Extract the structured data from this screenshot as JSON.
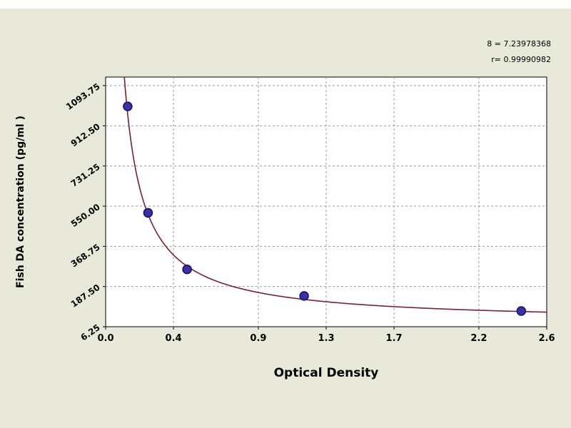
{
  "page": {
    "background_color": "#e9e9da"
  },
  "chart_data": {
    "type": "line",
    "title": "",
    "xlabel": "Optical Density",
    "ylabel": "Fish DA concentration (pg/ml )",
    "xlim": [
      0.0,
      2.6
    ],
    "ylim": [
      6.25,
      1093.75
    ],
    "x_ticks": [
      0.0,
      0.4,
      0.9,
      1.3,
      1.7,
      2.2,
      2.6
    ],
    "x_tick_labels": [
      "0.0",
      "0.4",
      "0.9",
      "1.3",
      "1.7",
      "2.2",
      "2.6"
    ],
    "y_ticks": [
      6.25,
      187.5,
      368.75,
      550.0,
      731.25,
      912.5,
      1093.75
    ],
    "y_tick_labels": [
      "6.25",
      "187.50",
      "368.75",
      "550.00",
      "731.25",
      "912.50",
      "1093.75"
    ],
    "grid": "dashed",
    "points": [
      {
        "x": 0.13,
        "y": 1000
      },
      {
        "x": 0.25,
        "y": 520
      },
      {
        "x": 0.48,
        "y": 265
      },
      {
        "x": 1.17,
        "y": 145
      },
      {
        "x": 2.45,
        "y": 77
      }
    ],
    "curve_fit": {
      "model": "y = a + b/x",
      "a": 25,
      "b": 122,
      "x_start": 0.1,
      "x_end": 2.6
    },
    "annotations": [
      "8 = 7.23978368",
      "r= 0.99990982"
    ],
    "colors": {
      "curve": "#7b1f2f",
      "point_fill": "#3a30a8",
      "point_edge": "#151066",
      "grid": "#9a9a9a",
      "plot_bg": "#ffffff",
      "plot_border": "#000000",
      "page_bg": "#e9e9da"
    }
  }
}
